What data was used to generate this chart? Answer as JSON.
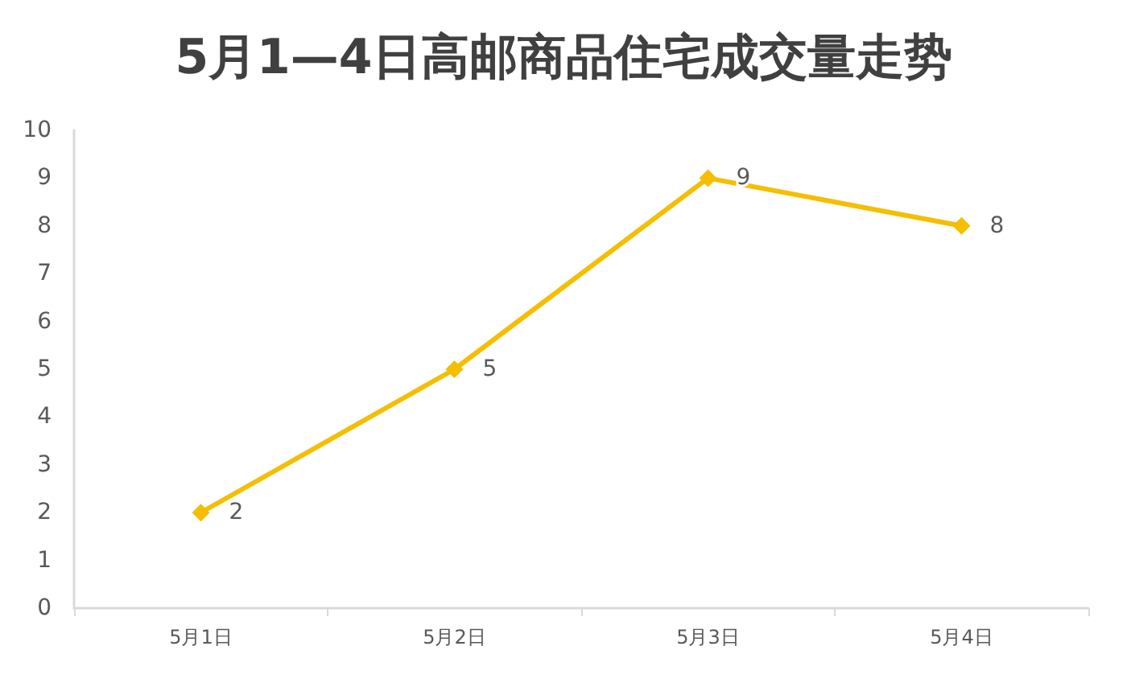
{
  "chart_data": {
    "type": "line",
    "title": "5月1—4日高邮商品住宅成交量走势",
    "categories": [
      "5月1日",
      "5月2日",
      "5月3日",
      "5月4日"
    ],
    "series": [
      {
        "color": "#f5be00",
        "values": [
          2,
          5,
          9,
          8
        ]
      }
    ],
    "ylim": [
      0,
      10
    ],
    "yticks": [
      0,
      1,
      2,
      3,
      4,
      5,
      6,
      7,
      8,
      9,
      10
    ],
    "grid": false,
    "marker": "diamond",
    "line_style": "solid",
    "data_labels": true
  }
}
